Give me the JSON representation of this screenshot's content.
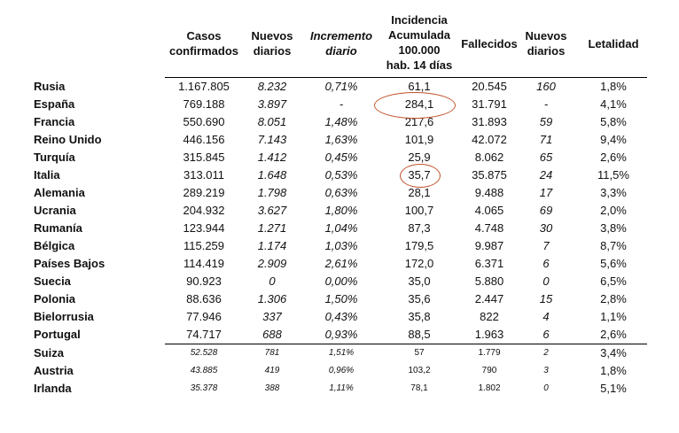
{
  "headers": {
    "casos": [
      "Casos",
      "confirmados"
    ],
    "nuevos": [
      "Nuevos",
      "diarios"
    ],
    "incremento": [
      "Incremento",
      "diario"
    ],
    "incidencia": [
      "Incidencia",
      "Acumulada",
      "100.000",
      "hab. 14 días"
    ],
    "fallecidos": [
      "Fallecidos"
    ],
    "nuevos2": [
      "Nuevos",
      "diarios"
    ],
    "letalidad": [
      "Letalidad"
    ]
  },
  "rows": [
    {
      "country": "Rusia",
      "casos": "1.167.805",
      "nuevos": "8.232",
      "incremento": "0,71%",
      "incidencia": "61,1",
      "fallecidos": "20.545",
      "nuevos_f": "160",
      "letalidad": "1,8%"
    },
    {
      "country": "España",
      "casos": "769.188",
      "nuevos": "3.897",
      "incremento": "-",
      "incidencia": "284,1",
      "fallecidos": "31.791",
      "nuevos_f": "-",
      "letalidad": "4,1%"
    },
    {
      "country": "Francia",
      "casos": "550.690",
      "nuevos": "8.051",
      "incremento": "1,48%",
      "incidencia": "217,6",
      "fallecidos": "31.893",
      "nuevos_f": "59",
      "letalidad": "5,8%"
    },
    {
      "country": "Reino Unido",
      "casos": "446.156",
      "nuevos": "7.143",
      "incremento": "1,63%",
      "incidencia": "101,9",
      "fallecidos": "42.072",
      "nuevos_f": "71",
      "letalidad": "9,4%"
    },
    {
      "country": "Turquía",
      "casos": "315.845",
      "nuevos": "1.412",
      "incremento": "0,45%",
      "incidencia": "25,9",
      "fallecidos": "8.062",
      "nuevos_f": "65",
      "letalidad": "2,6%"
    },
    {
      "country": "Italia",
      "casos": "313.011",
      "nuevos": "1.648",
      "incremento": "0,53%",
      "incidencia": "35,7",
      "fallecidos": "35.875",
      "nuevos_f": "24",
      "letalidad": "11,5%"
    },
    {
      "country": "Alemania",
      "casos": "289.219",
      "nuevos": "1.798",
      "incremento": "0,63%",
      "incidencia": "28,1",
      "fallecidos": "9.488",
      "nuevos_f": "17",
      "letalidad": "3,3%"
    },
    {
      "country": "Ucrania",
      "casos": "204.932",
      "nuevos": "3.627",
      "incremento": "1,80%",
      "incidencia": "100,7",
      "fallecidos": "4.065",
      "nuevos_f": "69",
      "letalidad": "2,0%"
    },
    {
      "country": "Rumanía",
      "casos": "123.944",
      "nuevos": "1.271",
      "incremento": "1,04%",
      "incidencia": "87,3",
      "fallecidos": "4.748",
      "nuevos_f": "30",
      "letalidad": "3,8%"
    },
    {
      "country": "Bélgica",
      "casos": "115.259",
      "nuevos": "1.174",
      "incremento": "1,03%",
      "incidencia": "179,5",
      "fallecidos": "9.987",
      "nuevos_f": "7",
      "letalidad": "8,7%"
    },
    {
      "country": "Países Bajos",
      "casos": "114.419",
      "nuevos": "2.909",
      "incremento": "2,61%",
      "incidencia": "172,0",
      "fallecidos": "6.371",
      "nuevos_f": "6",
      "letalidad": "5,6%"
    },
    {
      "country": "Suecia",
      "casos": "90.923",
      "nuevos": "0",
      "incremento": "0,00%",
      "incidencia": "35,0",
      "fallecidos": "5.880",
      "nuevos_f": "0",
      "letalidad": "6,5%"
    },
    {
      "country": "Polonia",
      "casos": "88.636",
      "nuevos": "1.306",
      "incremento": "1,50%",
      "incidencia": "35,6",
      "fallecidos": "2.447",
      "nuevos_f": "15",
      "letalidad": "2,8%"
    },
    {
      "country": "Bielorrusia",
      "casos": "77.946",
      "nuevos": "337",
      "incremento": "0,43%",
      "incidencia": "35,8",
      "fallecidos": "822",
      "nuevos_f": "4",
      "letalidad": "1,1%"
    },
    {
      "country": "Portugal",
      "casos": "74.717",
      "nuevos": "688",
      "incremento": "0,93%",
      "incidencia": "88,5",
      "fallecidos": "1.963",
      "nuevos_f": "6",
      "letalidad": "2,6%"
    },
    {
      "country": "Suiza",
      "casos": "52.528",
      "nuevos": "781",
      "incremento": "1,51%",
      "incidencia": "57",
      "fallecidos": "1.779",
      "nuevos_f": "2",
      "letalidad": "3,4%"
    },
    {
      "country": "Austria",
      "casos": "43.885",
      "nuevos": "419",
      "incremento": "0,96%",
      "incidencia": "103,2",
      "fallecidos": "790",
      "nuevos_f": "3",
      "letalidad": "1,8%"
    },
    {
      "country": "Irlanda",
      "casos": "35.378",
      "nuevos": "388",
      "incremento": "1,11%",
      "incidencia": "78,1",
      "fallecidos": "1.802",
      "nuevos_f": "0",
      "letalidad": "5,1%"
    }
  ],
  "annotation_color": "#c0532b"
}
